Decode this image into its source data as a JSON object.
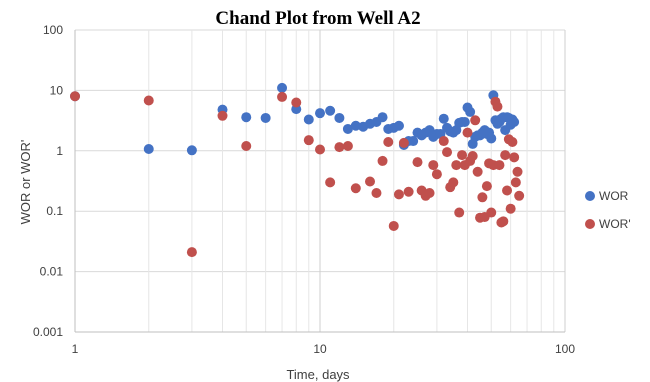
{
  "chart_data": {
    "type": "scatter",
    "title": "Chand Plot from Well A2",
    "xlabel": "Time, days",
    "ylabel": "WOR or WOR'",
    "x_scale": "log",
    "y_scale": "log",
    "xlim": [
      1,
      100
    ],
    "ylim": [
      0.001,
      100
    ],
    "x_ticks": [
      "1",
      "10",
      "100"
    ],
    "y_ticks": [
      "0.001",
      "0.01",
      "0.1",
      "1",
      "10",
      "100"
    ],
    "grid": true,
    "legend_position": "right",
    "series": [
      {
        "name": "WOR",
        "color": "#4472C4",
        "points": [
          [
            1,
            8.0
          ],
          [
            2,
            1.07
          ],
          [
            3,
            1.02
          ],
          [
            4,
            4.8
          ],
          [
            5,
            3.6
          ],
          [
            6,
            3.5
          ],
          [
            7,
            11.0
          ],
          [
            8,
            4.9
          ],
          [
            9,
            3.3
          ],
          [
            10,
            4.2
          ],
          [
            11,
            4.6
          ],
          [
            12,
            3.5
          ],
          [
            13,
            2.3
          ],
          [
            14,
            2.6
          ],
          [
            15,
            2.5
          ],
          [
            16,
            2.8
          ],
          [
            17,
            3.0
          ],
          [
            18,
            3.6
          ],
          [
            19,
            2.3
          ],
          [
            20,
            2.4
          ],
          [
            21,
            2.6
          ],
          [
            22,
            1.25
          ],
          [
            23,
            1.45
          ],
          [
            24,
            1.45
          ],
          [
            25,
            2.0
          ],
          [
            26,
            1.8
          ],
          [
            27,
            2.0
          ],
          [
            28,
            2.2
          ],
          [
            29,
            1.7
          ],
          [
            30,
            1.9
          ],
          [
            31,
            1.9
          ],
          [
            32,
            3.4
          ],
          [
            33,
            2.4
          ],
          [
            34,
            2.1
          ],
          [
            35,
            2.0
          ],
          [
            36,
            2.2
          ],
          [
            37,
            2.9
          ],
          [
            38,
            3.0
          ],
          [
            39,
            3.0
          ],
          [
            40,
            5.2
          ],
          [
            41,
            4.4
          ],
          [
            42,
            1.3
          ],
          [
            43,
            1.7
          ],
          [
            44,
            1.8
          ],
          [
            45,
            1.8
          ],
          [
            46,
            2.0
          ],
          [
            47,
            2.2
          ],
          [
            48,
            1.9
          ],
          [
            49,
            2.0
          ],
          [
            50,
            1.6
          ],
          [
            51,
            8.3
          ],
          [
            52,
            3.2
          ],
          [
            53,
            2.8
          ],
          [
            54,
            3.0
          ],
          [
            55,
            3.4
          ],
          [
            56,
            3.6
          ],
          [
            57,
            2.2
          ],
          [
            58,
            3.6
          ],
          [
            59,
            3.5
          ],
          [
            60,
            2.7
          ],
          [
            61,
            3.3
          ],
          [
            62,
            3.0
          ]
        ]
      },
      {
        "name": "WOR'",
        "color": "#C0504D",
        "points": [
          [
            1,
            8.0
          ],
          [
            2,
            6.8
          ],
          [
            3,
            0.021
          ],
          [
            4,
            3.8
          ],
          [
            5,
            1.2
          ],
          [
            7,
            7.8
          ],
          [
            8,
            6.3
          ],
          [
            9,
            1.5
          ],
          [
            10,
            1.05
          ],
          [
            11,
            0.3
          ],
          [
            12,
            1.15
          ],
          [
            13,
            1.2
          ],
          [
            14,
            0.24
          ],
          [
            16,
            0.31
          ],
          [
            17,
            0.2
          ],
          [
            18,
            0.68
          ],
          [
            19,
            1.4
          ],
          [
            20,
            0.057
          ],
          [
            21,
            0.19
          ],
          [
            22,
            1.35
          ],
          [
            23,
            0.21
          ],
          [
            25,
            0.65
          ],
          [
            26,
            0.22
          ],
          [
            27,
            0.18
          ],
          [
            28,
            0.2
          ],
          [
            29,
            0.58
          ],
          [
            30,
            0.41
          ],
          [
            32,
            1.45
          ],
          [
            33,
            0.95
          ],
          [
            34,
            0.25
          ],
          [
            35,
            0.3
          ],
          [
            36,
            0.58
          ],
          [
            37,
            0.095
          ],
          [
            38,
            0.85
          ],
          [
            39,
            0.58
          ],
          [
            40,
            2.0
          ],
          [
            41,
            0.68
          ],
          [
            42,
            0.82
          ],
          [
            43,
            3.2
          ],
          [
            44,
            0.45
          ],
          [
            45,
            0.078
          ],
          [
            46,
            0.17
          ],
          [
            47,
            0.08
          ],
          [
            48,
            0.26
          ],
          [
            49,
            0.62
          ],
          [
            50,
            0.095
          ],
          [
            51,
            0.58
          ],
          [
            52,
            6.5
          ],
          [
            53,
            5.4
          ],
          [
            54,
            0.58
          ],
          [
            55,
            0.065
          ],
          [
            56,
            0.068
          ],
          [
            57,
            0.85
          ],
          [
            58,
            0.22
          ],
          [
            59,
            1.55
          ],
          [
            60,
            0.11
          ],
          [
            61,
            1.4
          ],
          [
            62,
            0.78
          ],
          [
            63,
            0.3
          ],
          [
            64,
            0.45
          ],
          [
            65,
            0.18
          ]
        ]
      }
    ]
  }
}
